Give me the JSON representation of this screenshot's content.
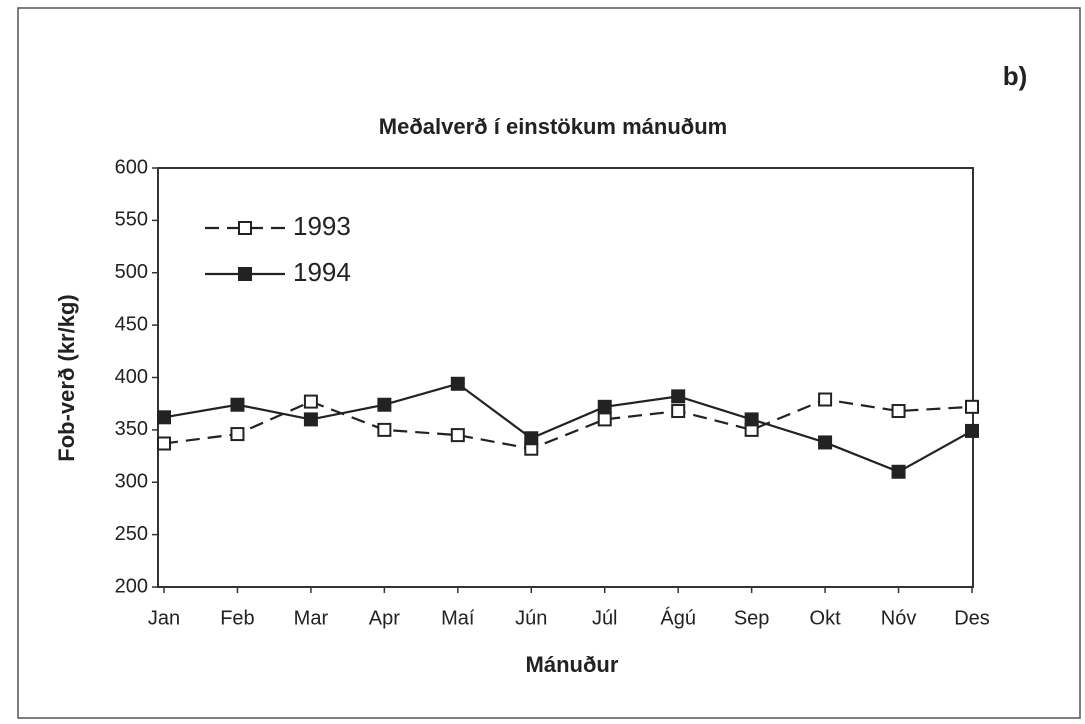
{
  "chart_data": {
    "type": "line",
    "label": "b)",
    "title": "Meðalverð í einstökum mánuðum",
    "x_label": "Mánuður",
    "y_label": "Fob-verð (kr/kg)",
    "categories": [
      "Jan",
      "Feb",
      "Mar",
      "Apr",
      "Maí",
      "Jún",
      "Júl",
      "Ágú",
      "Sep",
      "Okt",
      "Nóv",
      "Des"
    ],
    "series": [
      {
        "name": "1993",
        "color": "#222222",
        "dashed": true,
        "marker": "hollow-square",
        "values": [
          337,
          346,
          377,
          350,
          345,
          332,
          360,
          368,
          350,
          379,
          368,
          372
        ]
      },
      {
        "name": "1994",
        "color": "#222222",
        "dashed": false,
        "marker": "filled-square",
        "values": [
          362,
          374,
          360,
          374,
          394,
          342,
          372,
          382,
          360,
          338,
          310,
          349
        ]
      }
    ],
    "ylim": [
      200,
      600
    ],
    "yticks": [
      200,
      250,
      300,
      350,
      400,
      450,
      500,
      550,
      600
    ],
    "legend": "upper left",
    "grid": false
  }
}
